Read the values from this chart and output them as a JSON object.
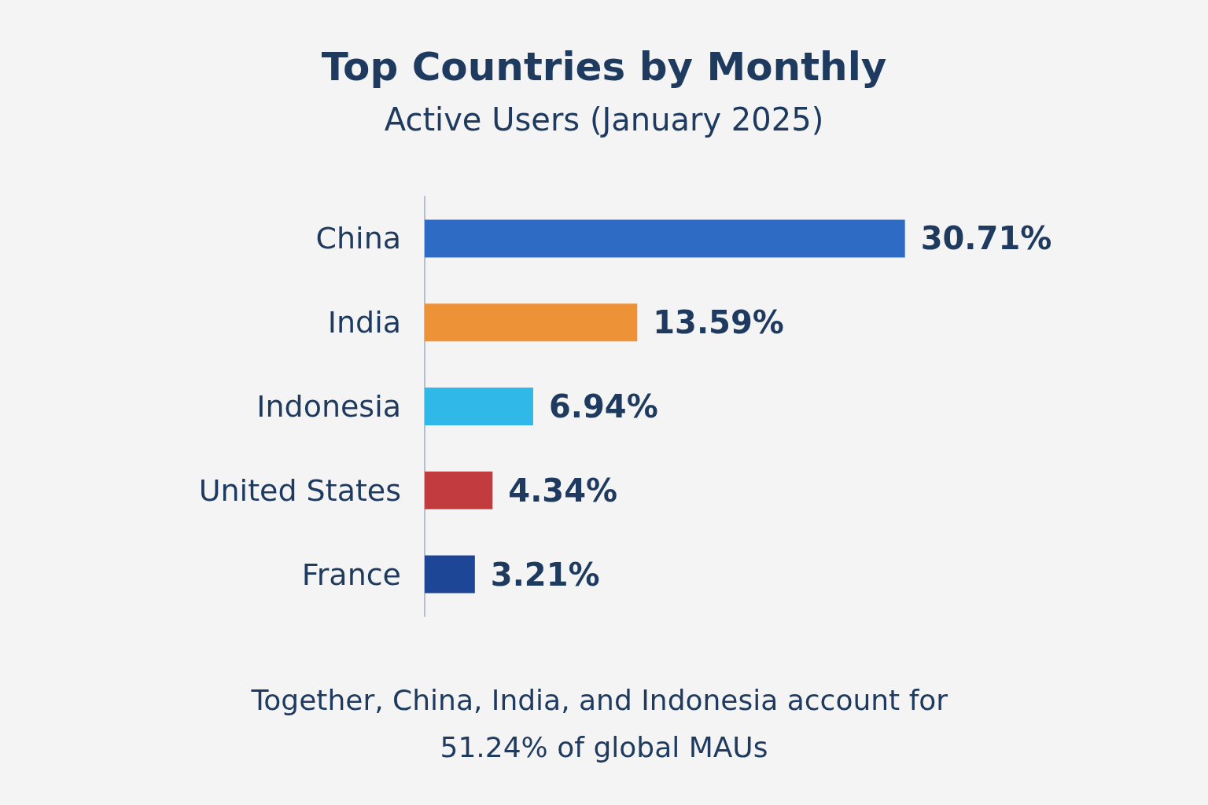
{
  "chart_data": {
    "type": "bar",
    "orientation": "horizontal",
    "title": "Top Countries by Monthly",
    "subtitle": "Active Users (January 2025)",
    "categories": [
      "China",
      "India",
      "Indonesia",
      "United States",
      "France"
    ],
    "values": [
      30.71,
      13.59,
      6.94,
      4.34,
      3.21
    ],
    "colors": [
      "#2e6bc4",
      "#ee9238",
      "#30b8e8",
      "#c23b3f",
      "#1e4696"
    ],
    "value_labels": [
      "30.71%",
      "13.59%",
      "6.94%",
      "4.34%",
      "3.21%"
    ],
    "tick_labels": "y",
    "annotations": [
      "Together, China, India, and Indonesia account for 51.24% of global MAUs"
    ]
  }
}
